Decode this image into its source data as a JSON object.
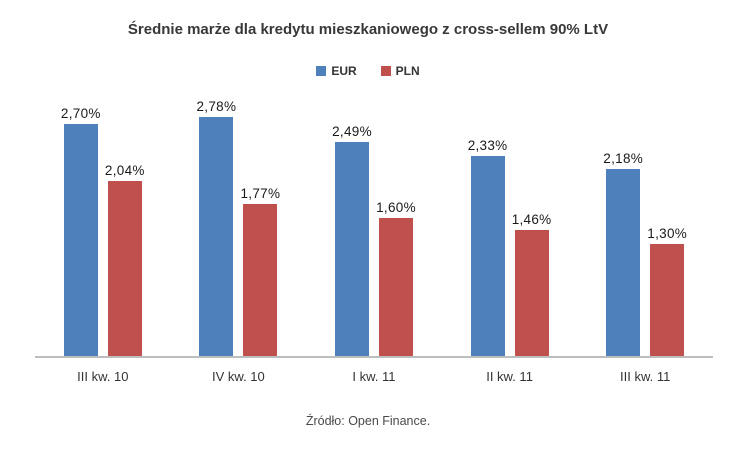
{
  "title": "Średnie marże dla kredytu mieszkaniowego z cross-sellem 90% LtV",
  "source": "Źródło: Open Finance.",
  "colors": {
    "eur": "#4e81bc",
    "pln": "#c0504d",
    "axis_line": "#bdbdbd"
  },
  "chart_data": {
    "type": "bar",
    "title": "Średnie marże dla kredytu mieszkaniowego z cross-sellem 90% LtV",
    "categories": [
      "III kw. 10",
      "IV kw. 10",
      "I kw. 11",
      "II kw. 11",
      "III kw. 11"
    ],
    "series": [
      {
        "name": "EUR",
        "color": "#4e81bc",
        "values": [
          2.7,
          2.78,
          2.49,
          2.33,
          2.18
        ],
        "value_labels": [
          "2,70%",
          "2,78%",
          "2,49%",
          "2,33%",
          "2,18%"
        ]
      },
      {
        "name": "PLN",
        "color": "#c0504d",
        "values": [
          2.04,
          1.77,
          1.6,
          1.46,
          1.3
        ],
        "value_labels": [
          "2,04%",
          "1,77%",
          "1,60%",
          "1,46%",
          "1,30%"
        ]
      }
    ],
    "xlabel": "",
    "ylabel": "",
    "ylim": [
      0,
      3.1
    ],
    "grid": false,
    "y_axis_visible": false,
    "legend_position": "top-center",
    "value_label_format": "comma-decimal percent",
    "source": "Źródło: Open Finance."
  }
}
